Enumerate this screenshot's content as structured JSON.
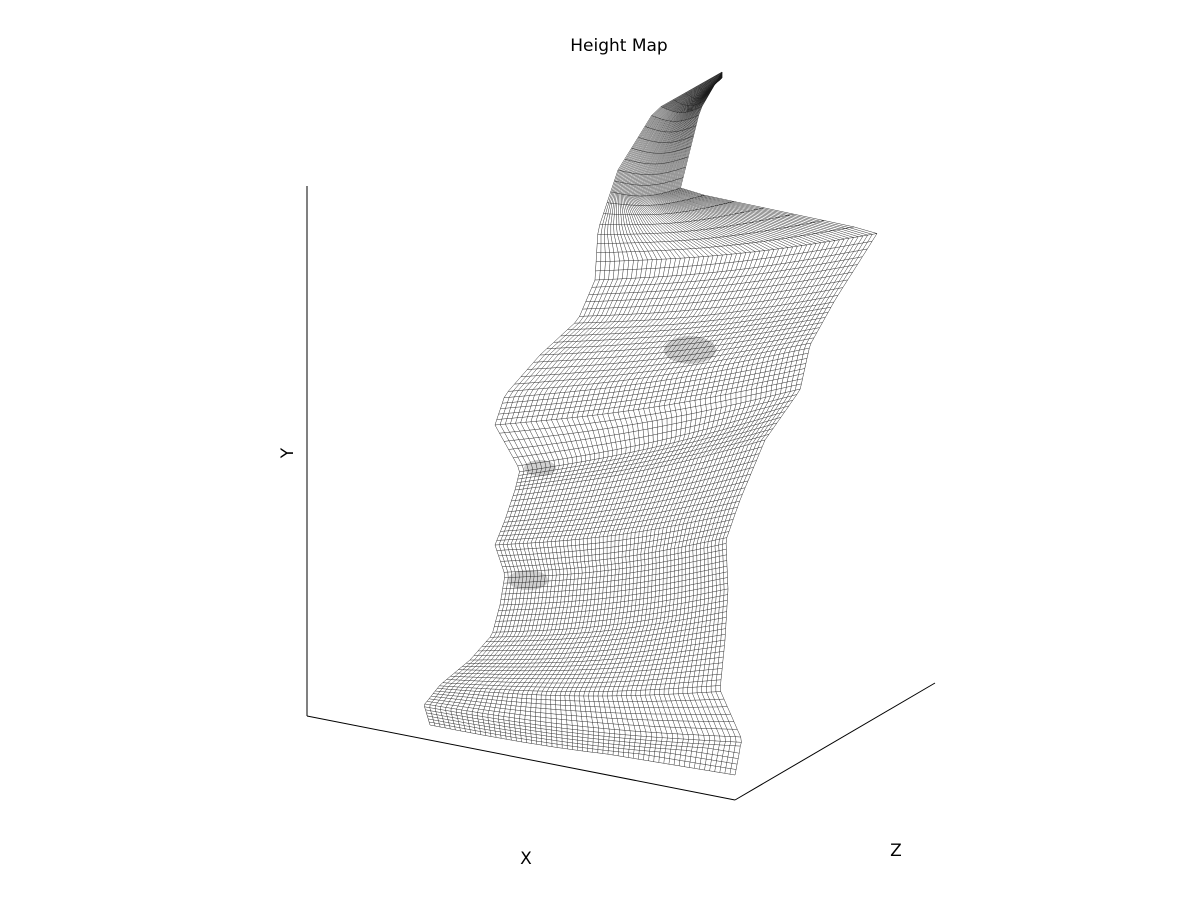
{
  "chart_data": {
    "type": "surface-wireframe",
    "title": "Height Map",
    "xlabel": "X",
    "ylabel": "Y",
    "zlabel": "Z",
    "grid": false,
    "colormap": "gray",
    "mesh_rows": 110,
    "mesh_cols": 60
  }
}
